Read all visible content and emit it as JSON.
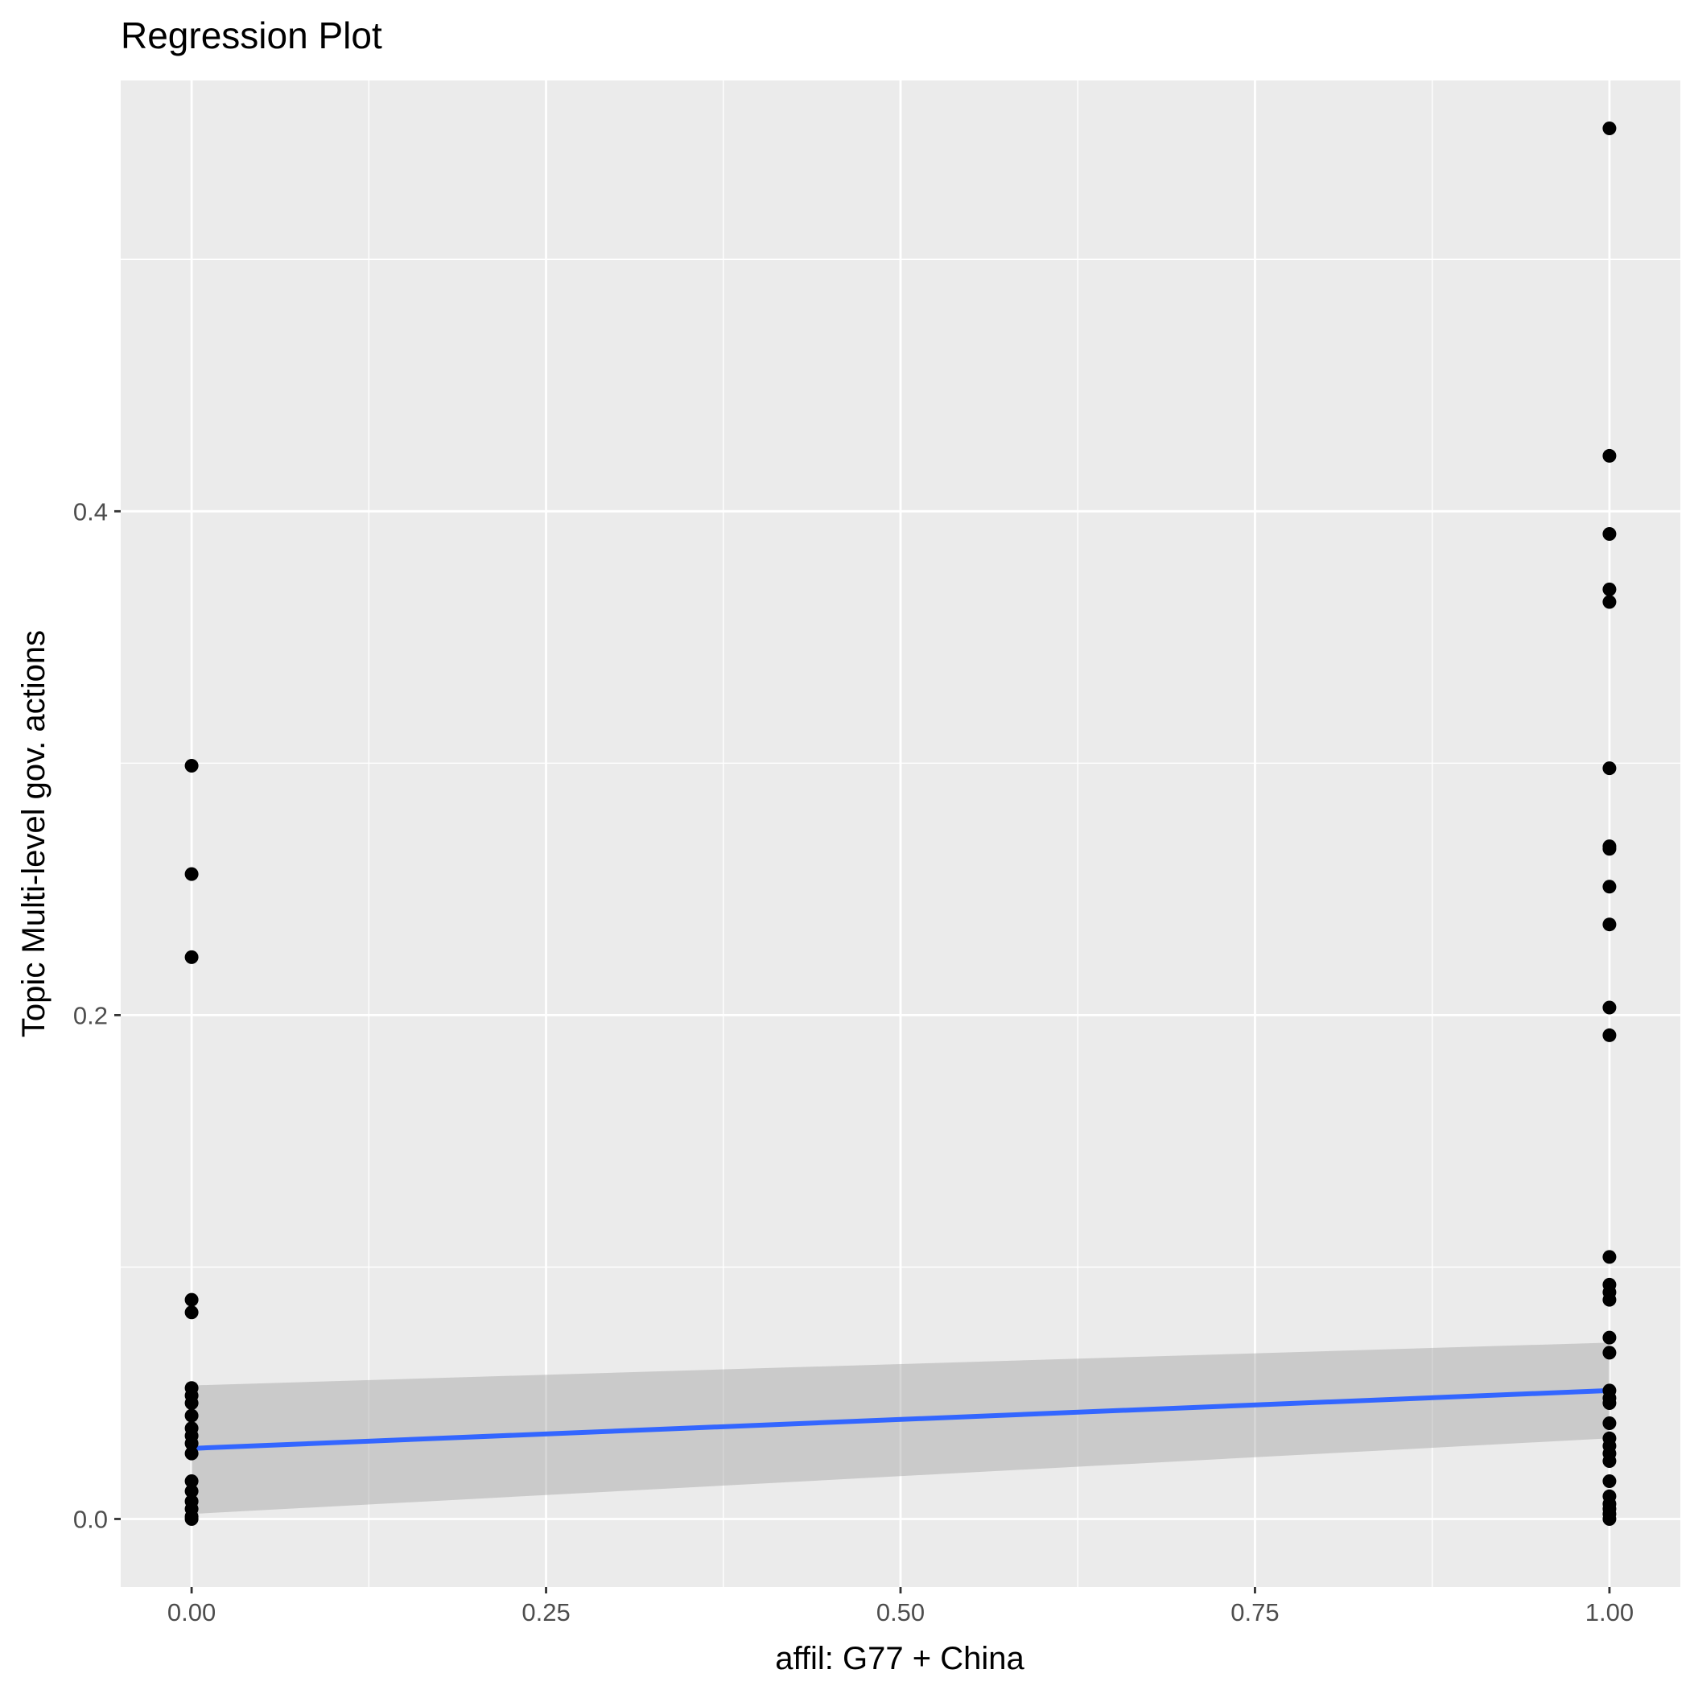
{
  "chart_data": {
    "type": "scatter",
    "title": "Regression Plot",
    "xlabel": "affil: G77 + China",
    "ylabel": "Topic Multi-level gov. actions",
    "xlim": [
      -0.05,
      1.05
    ],
    "ylim": [
      -0.027,
      0.571
    ],
    "x_ticks": [
      {
        "value": 0.0,
        "label": "0.00"
      },
      {
        "value": 0.25,
        "label": "0.25"
      },
      {
        "value": 0.5,
        "label": "0.50"
      },
      {
        "value": 0.75,
        "label": "0.75"
      },
      {
        "value": 1.0,
        "label": "1.00"
      }
    ],
    "y_ticks": [
      {
        "value": 0.0,
        "label": "0.0"
      },
      {
        "value": 0.2,
        "label": "0.2"
      },
      {
        "value": 0.4,
        "label": "0.4"
      }
    ],
    "grid": true,
    "colors": {
      "panel": "#ebebeb",
      "grid": "#ffffff",
      "points": "#000000",
      "fit_line": "#3366ff",
      "confidence_band": "#999999"
    },
    "points": [
      {
        "x": 0,
        "y": 0.299
      },
      {
        "x": 0,
        "y": 0.256
      },
      {
        "x": 0,
        "y": 0.223
      },
      {
        "x": 0,
        "y": 0.087
      },
      {
        "x": 0,
        "y": 0.082
      },
      {
        "x": 0,
        "y": 0.052
      },
      {
        "x": 0,
        "y": 0.049
      },
      {
        "x": 0,
        "y": 0.046
      },
      {
        "x": 0,
        "y": 0.041
      },
      {
        "x": 0,
        "y": 0.036
      },
      {
        "x": 0,
        "y": 0.033
      },
      {
        "x": 0,
        "y": 0.03
      },
      {
        "x": 0,
        "y": 0.026
      },
      {
        "x": 0,
        "y": 0.015
      },
      {
        "x": 0,
        "y": 0.011
      },
      {
        "x": 0,
        "y": 0.007
      },
      {
        "x": 0,
        "y": 0.004
      },
      {
        "x": 0,
        "y": 0.001
      },
      {
        "x": 0,
        "y": 0.0
      },
      {
        "x": 1,
        "y": 0.552
      },
      {
        "x": 1,
        "y": 0.422
      },
      {
        "x": 1,
        "y": 0.391
      },
      {
        "x": 1,
        "y": 0.369
      },
      {
        "x": 1,
        "y": 0.364
      },
      {
        "x": 1,
        "y": 0.298
      },
      {
        "x": 1,
        "y": 0.267
      },
      {
        "x": 1,
        "y": 0.266
      },
      {
        "x": 1,
        "y": 0.251
      },
      {
        "x": 1,
        "y": 0.236
      },
      {
        "x": 1,
        "y": 0.203
      },
      {
        "x": 1,
        "y": 0.192
      },
      {
        "x": 1,
        "y": 0.104
      },
      {
        "x": 1,
        "y": 0.093
      },
      {
        "x": 1,
        "y": 0.09
      },
      {
        "x": 1,
        "y": 0.087
      },
      {
        "x": 1,
        "y": 0.072
      },
      {
        "x": 1,
        "y": 0.066
      },
      {
        "x": 1,
        "y": 0.051
      },
      {
        "x": 1,
        "y": 0.048
      },
      {
        "x": 1,
        "y": 0.046
      },
      {
        "x": 1,
        "y": 0.038
      },
      {
        "x": 1,
        "y": 0.032
      },
      {
        "x": 1,
        "y": 0.029
      },
      {
        "x": 1,
        "y": 0.026
      },
      {
        "x": 1,
        "y": 0.023
      },
      {
        "x": 1,
        "y": 0.015
      },
      {
        "x": 1,
        "y": 0.009
      },
      {
        "x": 1,
        "y": 0.006
      },
      {
        "x": 1,
        "y": 0.004
      },
      {
        "x": 1,
        "y": 0.002
      },
      {
        "x": 1,
        "y": 0.0
      }
    ],
    "fit_line": {
      "x": [
        0,
        1
      ],
      "y": [
        0.028,
        0.051
      ]
    },
    "confidence_band": {
      "x": [
        0,
        1
      ],
      "lower": [
        0.002,
        0.032
      ],
      "upper": [
        0.053,
        0.07
      ]
    }
  }
}
